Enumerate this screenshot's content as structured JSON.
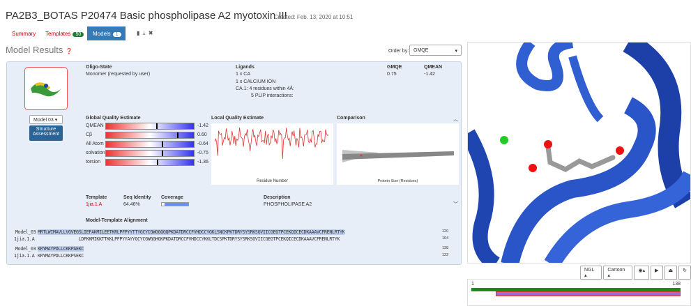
{
  "header": {
    "title": "PA2B3_BOTAS P20474 Basic phospholipase A2 myotoxin III",
    "created": "Created: Feb. 13, 2020 at 10:51"
  },
  "tabs": [
    {
      "label": "Summary"
    },
    {
      "label": "Templates",
      "badge": "50"
    },
    {
      "label": "Models",
      "badge": "1"
    }
  ],
  "results": {
    "title": "Model Results",
    "order_label": "Order by:",
    "order_value": "GMQE"
  },
  "model": {
    "button": "Model 03",
    "assessment": "Structure Assessment",
    "oligo_label": "Oligo-State",
    "oligo_value": "Monomer (requested by user)",
    "ligands_label": "Ligands",
    "ligands": [
      "1 x CA",
      "1 x CALCIUM ION",
      "CA.1:  4 residues within 4Å:",
      "5 PLIP interactions:"
    ],
    "gmqe_label": "GMQE",
    "gmqe": "0.75",
    "qmean_label": "QMEAN",
    "qmean": "-1.42"
  },
  "global_quality": {
    "title": "Global Quality Estimate",
    "rows": [
      [
        "QMEAN",
        "-1.42"
      ],
      [
        "Cβ",
        "0.60"
      ],
      [
        "All Atom",
        "-0.64"
      ],
      [
        "solvation",
        "-0.75"
      ],
      [
        "torsion",
        "-1.36"
      ]
    ]
  },
  "local_quality": {
    "title": "Local Quality Estimate",
    "xlabel": "Residue Number"
  },
  "comparison": {
    "title": "Comparison",
    "xlabel": "Protein Size (Residues)"
  },
  "template": {
    "label": "Template",
    "value": "1jia.1.A",
    "seq_label": "Seq Identity",
    "seq_value": "64.46%",
    "cov_label": "Coverage",
    "desc_label": "Description",
    "desc_value": "PHOSPHOLIPASE A2"
  },
  "alignment": {
    "title": "Model-Template Alignment",
    "rows": [
      [
        "Model_03",
        "MRTLWIMAVLLVGVEGSLIEFAKMILEETKRLPFPYYTTYGCYCGWGGQGQPKDATDRCCFVHDCCYGKLSNCKPKTDRYSYSRKSGVIICGEGTPCEKQICECDKAAAVCFRENLRTYK",
        "120"
      ],
      [
        "1jia.1.A",
        "                LDFKKMIKKTTKKLPFPYYAYYGCYCGWGGHGKPKDATDRCCFVHDCCYKKLTDCSPKTDRYSYSRKSGVIICGEGTPCEKQICECDKAAAVCFRENLRTYK",
        "104"
      ],
      [
        "Model_03",
        "KRYMAYPDLLCKKPAEKC",
        "138"
      ],
      [
        "1jia.1.A",
        "KRYMAYPDLLCKKPSEKC",
        "122"
      ]
    ]
  },
  "viewer": {
    "ngl": "NGL",
    "style": "Cartoon",
    "start": "1",
    "end": "138"
  }
}
